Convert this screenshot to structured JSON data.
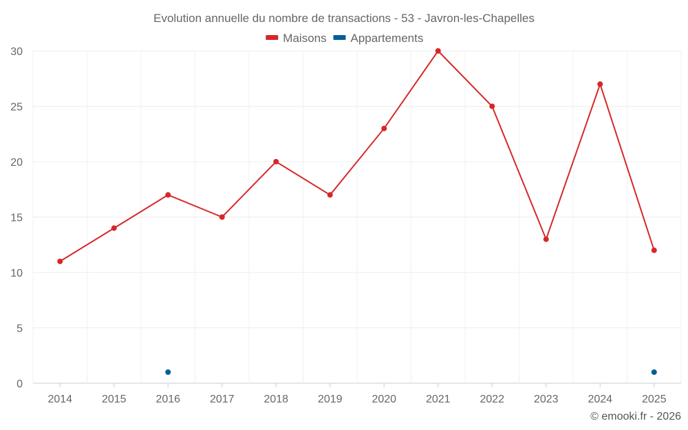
{
  "chart_data": {
    "type": "line",
    "title": "Evolution annuelle du nombre de transactions - 53 - Javron-les-Chapelles",
    "categories": [
      "2014",
      "2015",
      "2016",
      "2017",
      "2018",
      "2019",
      "2020",
      "2021",
      "2022",
      "2023",
      "2024",
      "2025"
    ],
    "series": [
      {
        "name": "Maisons",
        "color": "#d62728",
        "values": [
          11,
          14,
          17,
          15,
          20,
          17,
          23,
          30,
          25,
          13,
          27,
          12
        ]
      },
      {
        "name": "Appartements",
        "color": "#005f99",
        "values": [
          null,
          null,
          1,
          null,
          null,
          null,
          null,
          null,
          null,
          null,
          null,
          1
        ]
      }
    ],
    "ylim": [
      0,
      30
    ],
    "yticks": [
      0,
      5,
      10,
      15,
      20,
      25,
      30
    ],
    "xlabel": "",
    "ylabel": "",
    "grid": true,
    "legend_position": "top-center",
    "credit": "© emooki.fr - 2026"
  }
}
